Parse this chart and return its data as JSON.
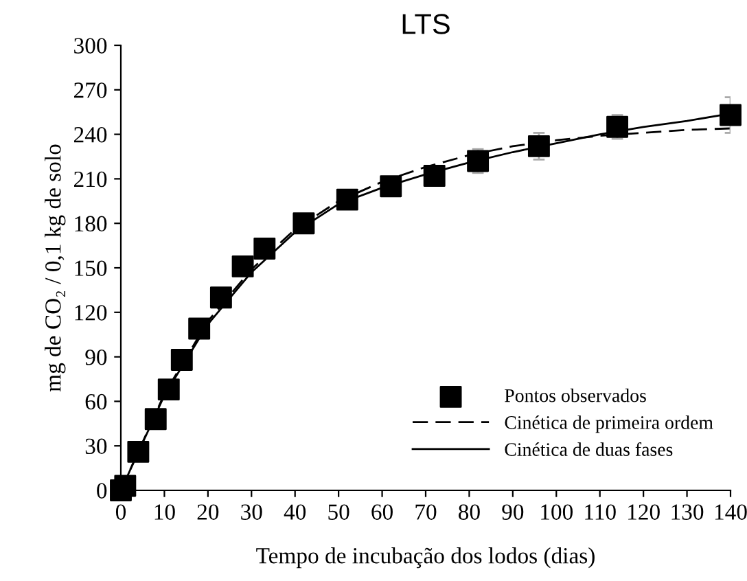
{
  "chart_data": {
    "type": "scatter",
    "title": "LTS",
    "xlabel": "Tempo de incubação dos lodos (dias)",
    "ylabel": "mg de CO₂ / 0,1 kg de solo",
    "xlim": [
      0,
      140
    ],
    "ylim": [
      0,
      300
    ],
    "xticks": [
      0,
      10,
      20,
      30,
      40,
      50,
      60,
      70,
      80,
      90,
      100,
      110,
      120,
      130,
      140
    ],
    "yticks": [
      0,
      30,
      60,
      90,
      120,
      150,
      180,
      210,
      240,
      270,
      300
    ],
    "grid": false,
    "legend": "bottom right",
    "series": [
      {
        "name": "Pontos observados",
        "marker": "square",
        "color": "#000000",
        "x": [
          0,
          1,
          4,
          8,
          11,
          14,
          18,
          23,
          28,
          33,
          42,
          52,
          62,
          72,
          82,
          96,
          114,
          140
        ],
        "values": [
          0,
          3,
          26,
          48,
          68,
          88,
          109,
          130,
          151,
          163,
          180,
          196,
          205,
          212,
          222,
          232,
          245,
          253
        ],
        "errors": [
          null,
          null,
          null,
          null,
          null,
          null,
          null,
          null,
          null,
          null,
          null,
          6,
          6,
          6,
          8,
          9,
          8,
          12
        ]
      },
      {
        "name": "Cinética de primeira ordem",
        "type": "line",
        "line_style": "dashed",
        "marker": "none",
        "color": "#000000",
        "x": [
          0,
          10,
          20,
          30,
          40,
          50,
          60,
          70,
          80,
          90,
          100,
          110,
          120,
          130,
          140
        ],
        "values": [
          0,
          65,
          114,
          149,
          176,
          195,
          208,
          218,
          226,
          232,
          236,
          239,
          241,
          243,
          244
        ]
      },
      {
        "name": "Cinética de duas fases",
        "type": "line",
        "line_style": "solid",
        "marker": "none",
        "color": "#000000",
        "x": [
          0,
          10,
          20,
          30,
          40,
          50,
          60,
          70,
          80,
          90,
          100,
          110,
          120,
          130,
          140
        ],
        "values": [
          0,
          64,
          112,
          147,
          174,
          193,
          204,
          213,
          221,
          228,
          234,
          240,
          245,
          249,
          254
        ]
      }
    ]
  }
}
